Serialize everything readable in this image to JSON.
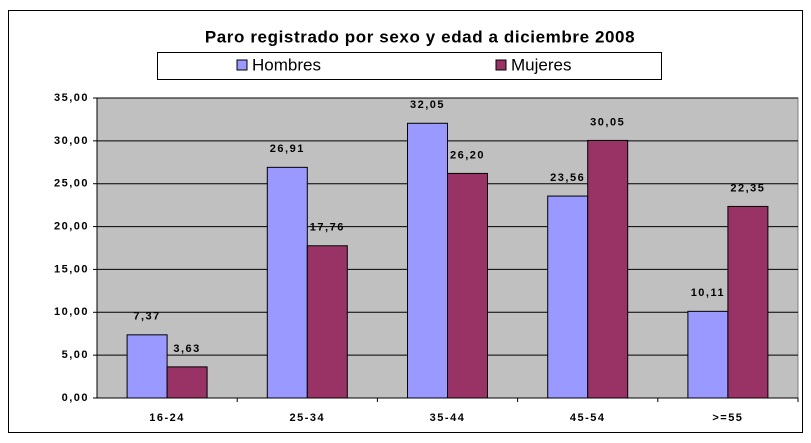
{
  "chart_data": {
    "type": "bar",
    "title": "Paro registrado por sexo y edad a diciembre 2008",
    "categories": [
      "16-24",
      "25-34",
      "35-44",
      "45-54",
      ">=55"
    ],
    "series": [
      {
        "name": "Hombres",
        "color": "#9999ff",
        "values": [
          7.37,
          26.91,
          32.05,
          23.56,
          10.11
        ],
        "value_labels": [
          "7,37",
          "26,91",
          "32,05",
          "23,56",
          "10,11"
        ]
      },
      {
        "name": "Mujeres",
        "color": "#993366",
        "values": [
          3.63,
          17.76,
          26.2,
          30.05,
          22.35
        ],
        "value_labels": [
          "3,63",
          "17,76",
          "26,20",
          "30,05",
          "22,35"
        ]
      }
    ],
    "ylim": [
      0,
      35
    ],
    "yticks": [
      {
        "value": 0,
        "label": "0,00"
      },
      {
        "value": 5,
        "label": "5,00"
      },
      {
        "value": 10,
        "label": "10,00"
      },
      {
        "value": 15,
        "label": "15,00"
      },
      {
        "value": 20,
        "label": "20,00"
      },
      {
        "value": 25,
        "label": "25,00"
      },
      {
        "value": 30,
        "label": "30,00"
      },
      {
        "value": 35,
        "label": "35,00"
      }
    ],
    "grid": true,
    "legend": "top",
    "plot_background": "#c0c0c0"
  }
}
